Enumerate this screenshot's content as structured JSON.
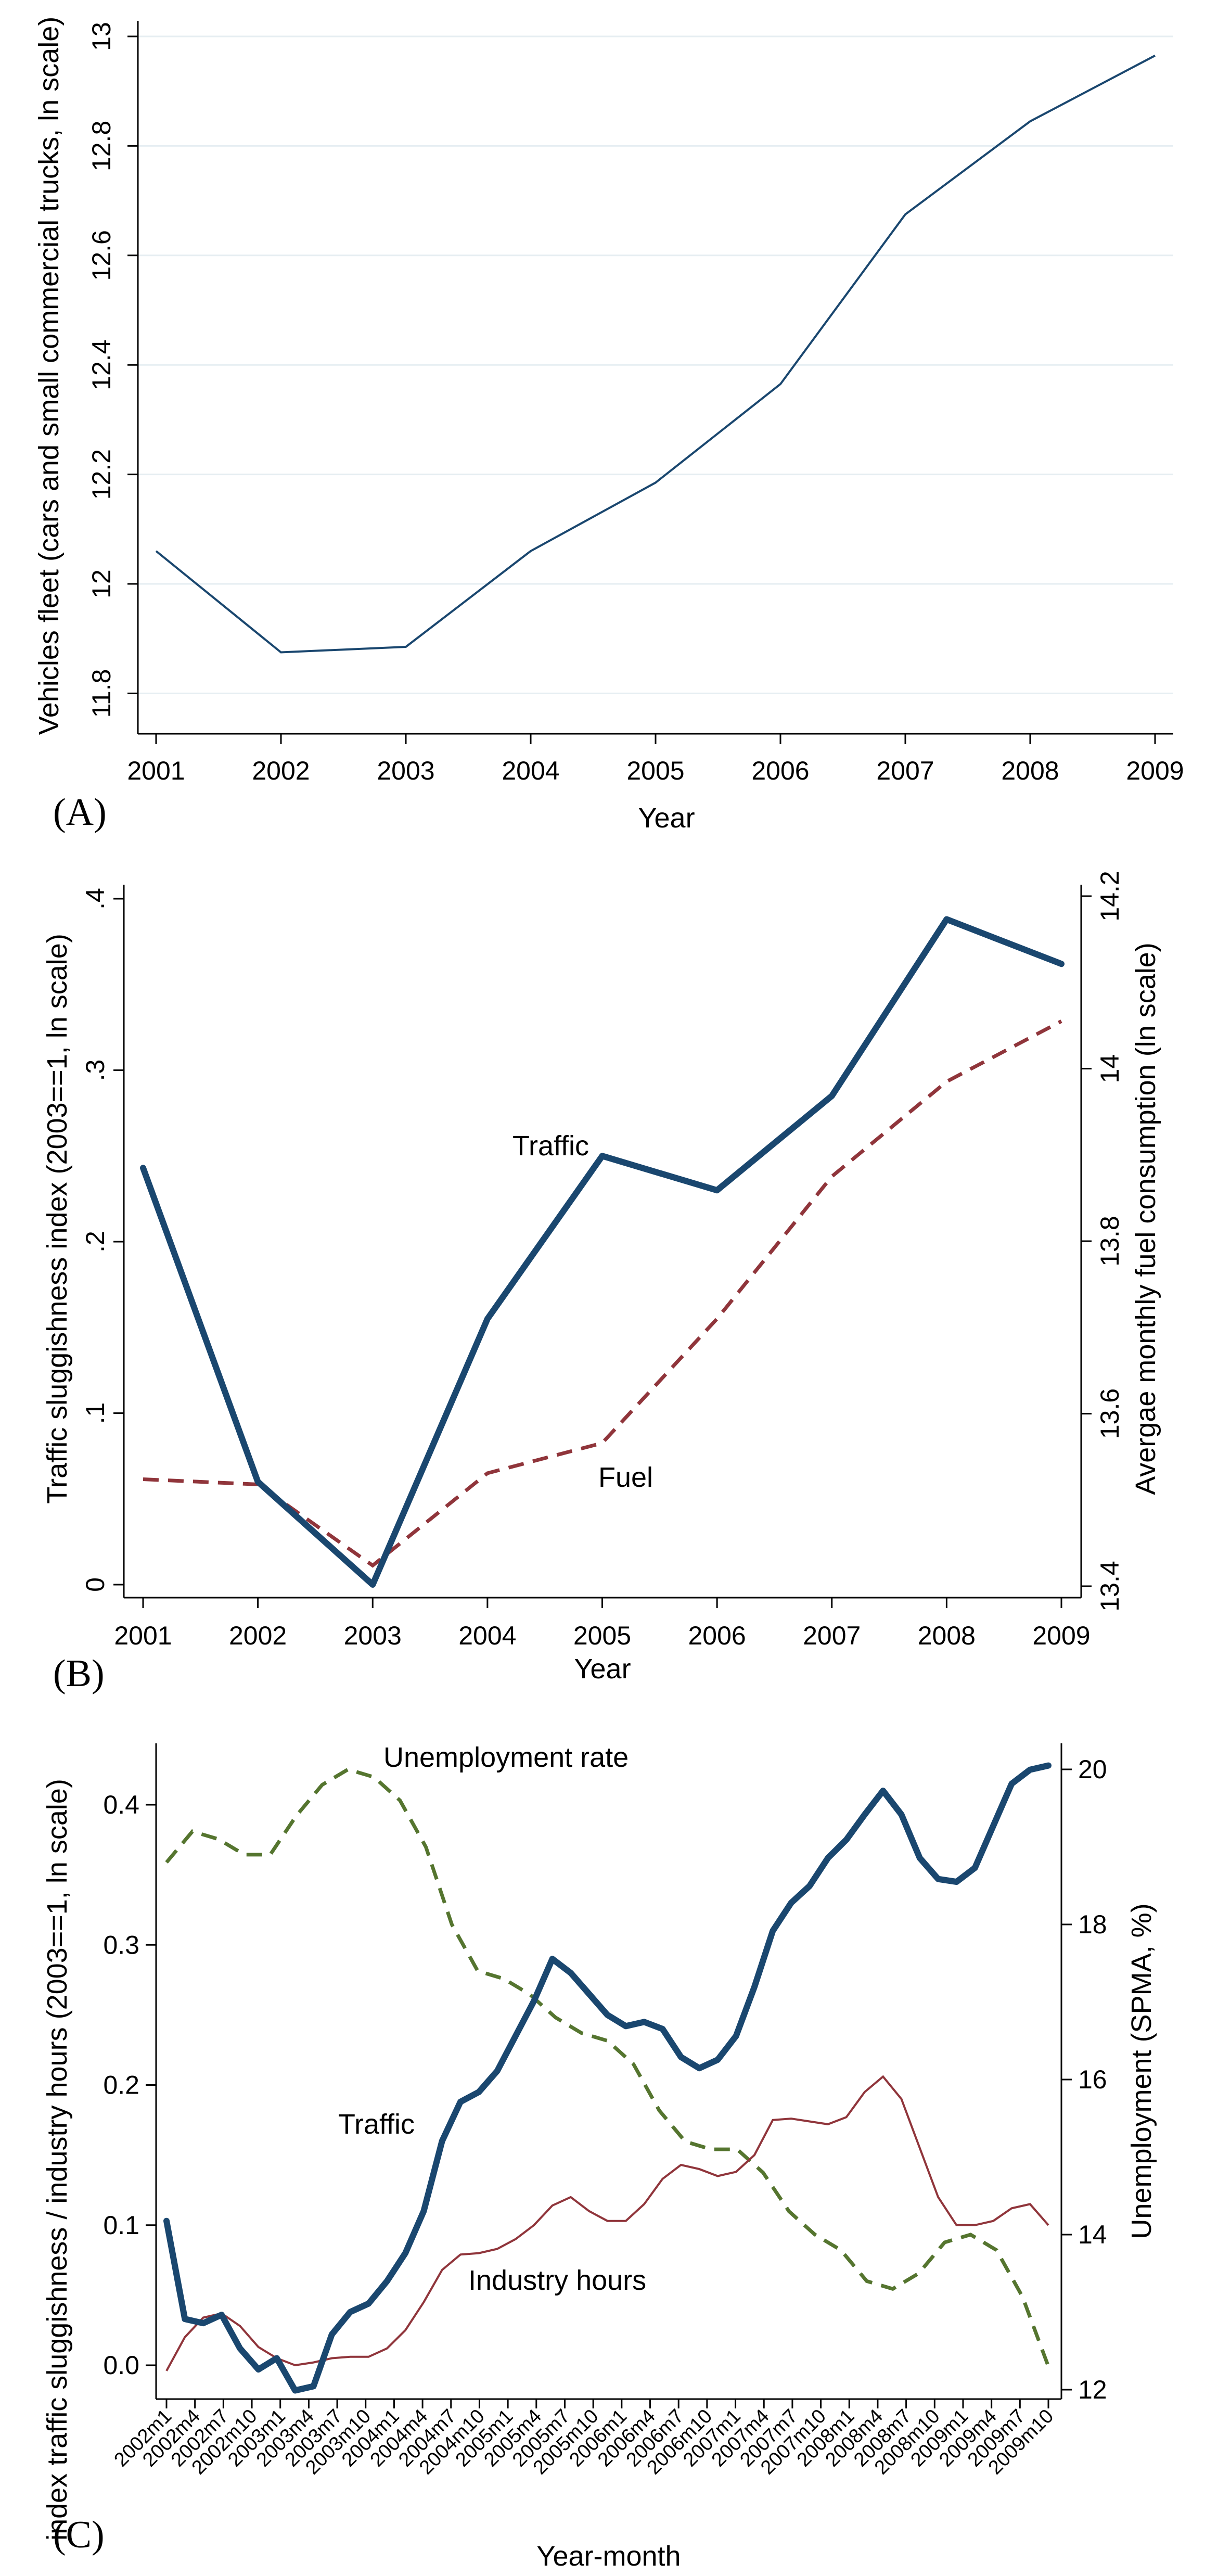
{
  "colors": {
    "navy": "#1a476f",
    "maroon": "#90353b",
    "olive": "#55752f",
    "axis": "#000000",
    "grid": "#e6eef2"
  },
  "chart_data": [
    {
      "type": "line",
      "panel_label": "(A)",
      "xlabel": "Year",
      "ylabel": "Vehicles fleet (cars and small commercial trucks, ln scale)",
      "x": [
        2001,
        2002,
        2003,
        2004,
        2005,
        2006,
        2007,
        2008,
        2009
      ],
      "ylim": [
        11.75,
        13.0
      ],
      "grid": true,
      "series": [
        {
          "name": "Vehicles fleet",
          "values": [
            12.06,
            11.875,
            11.885,
            12.06,
            12.185,
            12.365,
            12.675,
            12.845,
            12.965
          ]
        }
      ],
      "y_ticks": [
        {
          "label": "11.8",
          "value": 11.8
        },
        {
          "label": "12",
          "value": 12.0
        },
        {
          "label": "12.2",
          "value": 12.2
        },
        {
          "label": "12.4",
          "value": 12.4
        },
        {
          "label": "12.6",
          "value": 12.6
        },
        {
          "label": "12.8",
          "value": 12.8
        },
        {
          "label": "13",
          "value": 13.0
        }
      ],
      "x_ticks": [
        "2001",
        "2002",
        "2003",
        "2004",
        "2005",
        "2006",
        "2007",
        "2008",
        "2009"
      ]
    },
    {
      "type": "line",
      "panel_label": "(B)",
      "xlabel": "Year",
      "ylabel_left": "Traffic sluggishness index (2003==1, ln scale)",
      "ylabel_right": "Avergae monthly fuel consumption (ln scale)",
      "x": [
        2001,
        2002,
        2003,
        2004,
        2005,
        2006,
        2007,
        2008,
        2009
      ],
      "ylim_left": [
        0,
        0.4
      ],
      "ylim_right": [
        13.4,
        14.2
      ],
      "grid": false,
      "series": [
        {
          "name": "Traffic",
          "axis": "left",
          "values": [
            0.243,
            0.06,
            0.0,
            0.155,
            0.25,
            0.23,
            0.285,
            0.388,
            0.362
          ]
        },
        {
          "name": "Fuel",
          "axis": "right",
          "values": [
            13.524,
            13.518,
            13.424,
            13.531,
            13.566,
            13.71,
            13.875,
            13.985,
            14.055
          ]
        }
      ],
      "annotations": [
        "Traffic",
        "Fuel"
      ],
      "y_ticks_left": [
        {
          "label": "0",
          "value": 0
        },
        {
          "label": ".1",
          "value": 0.1
        },
        {
          "label": ".2",
          "value": 0.2
        },
        {
          "label": ".3",
          "value": 0.3
        },
        {
          "label": ".4",
          "value": 0.4
        }
      ],
      "y_ticks_right": [
        {
          "label": "13.4",
          "value": 13.4
        },
        {
          "label": "13.6",
          "value": 13.6
        },
        {
          "label": "13.8",
          "value": 13.8
        },
        {
          "label": "14",
          "value": 14.0
        },
        {
          "label": "14.2",
          "value": 14.2
        }
      ],
      "x_ticks": [
        "2001",
        "2002",
        "2003",
        "2004",
        "2005",
        "2006",
        "2007",
        "2008",
        "2009"
      ]
    },
    {
      "type": "line",
      "panel_label": "(C)",
      "xlabel": "Year-month",
      "ylabel_left": "index traffic sluggishness / industry hours (2003==1, ln scale)",
      "ylabel_right": "Unemployment (SPMA, %)",
      "ylim_left": [
        -0.035,
        0.44
      ],
      "ylim_right": [
        12,
        20.2
      ],
      "grid": false,
      "x_tick_labels": [
        "2002m1",
        "2002m4",
        "2002m7",
        "2002m10",
        "2003m1",
        "2003m4",
        "2003m7",
        "2003m10",
        "2004m1",
        "2004m4",
        "2004m7",
        "2004m10",
        "2005m1",
        "2005m4",
        "2005m7",
        "2005m10",
        "2006m1",
        "2006m4",
        "2006m7",
        "2006m10",
        "2007m1",
        "2007m4",
        "2007m7",
        "2007m10",
        "2008m1",
        "2008m4",
        "2008m7",
        "2008m10",
        "2009m1",
        "2009m4",
        "2009m7",
        "2009m10"
      ],
      "series": [
        {
          "name": "Traffic",
          "axis": "left",
          "values": [
            0.103,
            0.033,
            0.03,
            0.036,
            0.012,
            -0.003,
            0.005,
            -0.018,
            -0.015,
            0.022,
            0.038,
            0.044,
            0.06,
            0.08,
            0.11,
            0.16,
            0.188,
            0.195,
            0.21,
            0.235,
            0.26,
            0.29,
            0.28,
            0.265,
            0.25,
            0.242,
            0.245,
            0.24,
            0.22,
            0.212,
            0.218,
            0.235,
            0.27,
            0.31,
            0.33,
            0.342,
            0.362,
            0.375,
            0.393,
            0.41,
            0.393,
            0.362,
            0.347,
            0.345,
            0.355,
            0.385,
            0.415,
            0.425,
            0.428
          ]
        },
        {
          "name": "Industry hours",
          "axis": "left",
          "values": [
            -0.004,
            0.02,
            0.034,
            0.037,
            0.028,
            0.013,
            0.005,
            0.0,
            0.002,
            0.005,
            0.006,
            0.006,
            0.012,
            0.025,
            0.045,
            0.068,
            0.079,
            0.08,
            0.083,
            0.09,
            0.1,
            0.114,
            0.12,
            0.11,
            0.103,
            0.103,
            0.115,
            0.133,
            0.143,
            0.14,
            0.135,
            0.138,
            0.15,
            0.175,
            0.176,
            0.174,
            0.172,
            0.177,
            0.195,
            0.206,
            0.19,
            0.155,
            0.12,
            0.1,
            0.1,
            0.103,
            0.112,
            0.115,
            0.1
          ]
        },
        {
          "name": "Unemployment rate",
          "axis": "right",
          "values": [
            18.8,
            19.2,
            19.1,
            18.9,
            18.9,
            19.4,
            19.8,
            20.0,
            19.9,
            19.6,
            19.0,
            18.0,
            17.4,
            17.3,
            17.1,
            16.8,
            16.6,
            16.5,
            16.2,
            15.6,
            15.2,
            15.1,
            15.1,
            14.8,
            14.3,
            14.0,
            13.8,
            13.4,
            13.3,
            13.5,
            13.9,
            14.0,
            13.8,
            13.2,
            12.3
          ]
        }
      ],
      "annotations": [
        "Unemployment rate",
        "Traffic",
        "Industry hours"
      ],
      "y_ticks_left": [
        {
          "label": "0.0",
          "value": 0.0
        },
        {
          "label": "0.1",
          "value": 0.1
        },
        {
          "label": "0.2",
          "value": 0.2
        },
        {
          "label": "0.3",
          "value": 0.3
        },
        {
          "label": "0.4",
          "value": 0.4
        }
      ],
      "y_ticks_right": [
        {
          "label": "12",
          "value": 12
        },
        {
          "label": "14",
          "value": 14
        },
        {
          "label": "16",
          "value": 16
        },
        {
          "label": "18",
          "value": 18
        },
        {
          "label": "20",
          "value": 20
        }
      ]
    }
  ]
}
